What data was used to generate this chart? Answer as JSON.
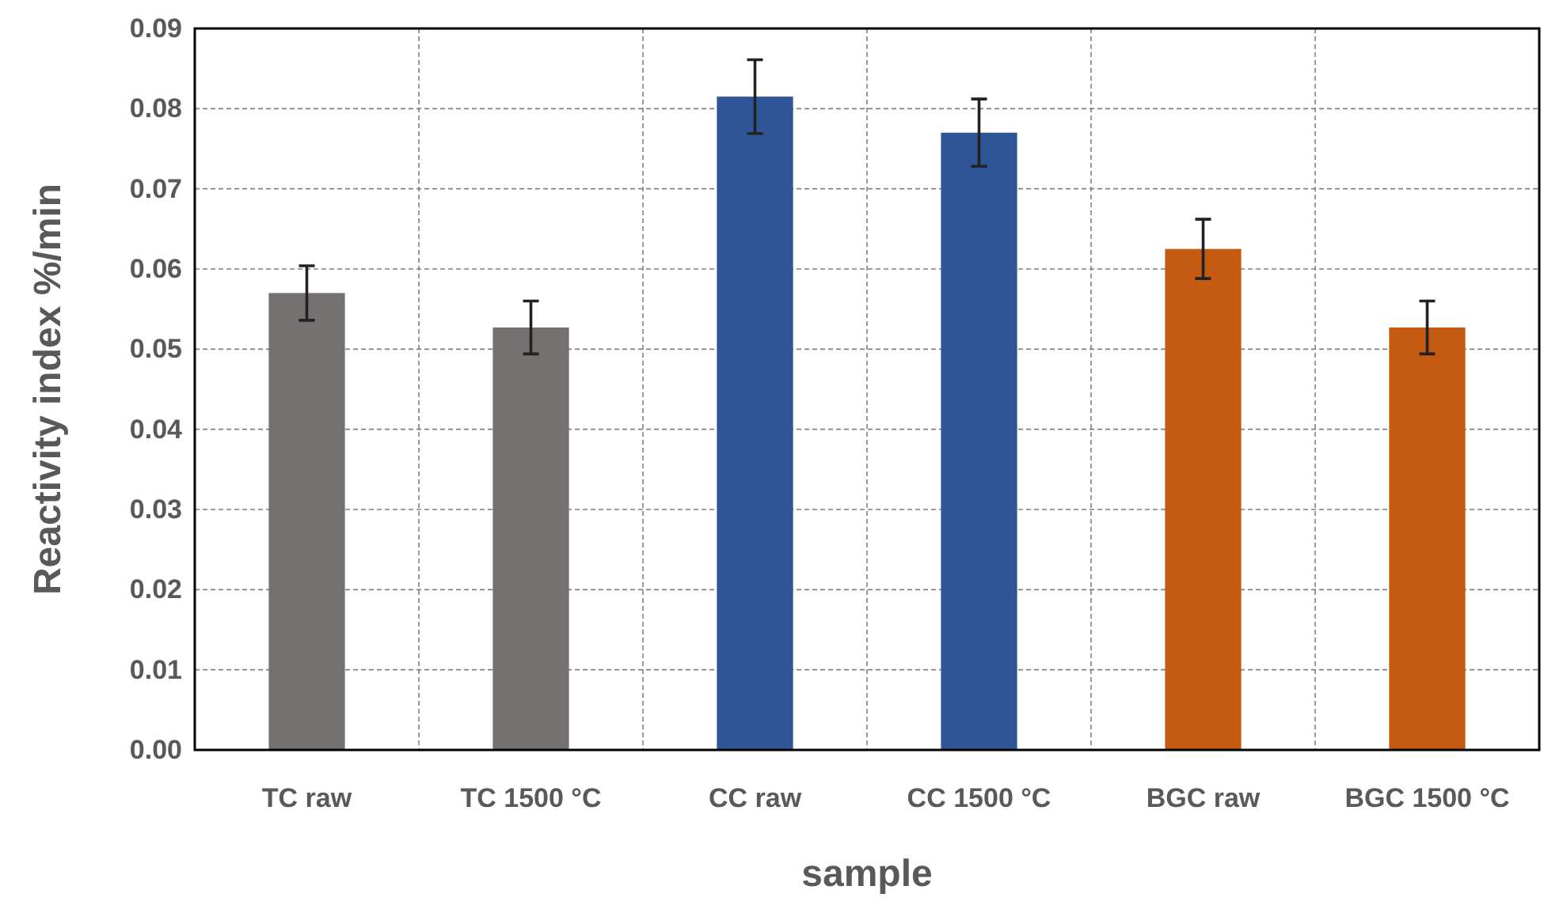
{
  "chart_data": {
    "type": "bar",
    "xlabel": "sample",
    "ylabel": "Reactivity index %/min",
    "categories": [
      "TC raw",
      "TC 1500 °C",
      "CC raw",
      "CC 1500 °C",
      "BGC raw",
      "BGC 1500 °C"
    ],
    "values": [
      0.057,
      0.0527,
      0.0815,
      0.077,
      0.0625,
      0.0527
    ],
    "colors": [
      "#767171",
      "#767171",
      "#2f5597",
      "#2f5597",
      "#c55a11",
      "#c55a11"
    ],
    "errors": [
      0.0034,
      0.0033,
      0.0046,
      0.0042,
      0.0037,
      0.0033
    ],
    "ylim": [
      0,
      0.09
    ],
    "yticks": [
      {
        "value": 0,
        "label": "0.00"
      },
      {
        "value": 0.01,
        "label": "0.01"
      },
      {
        "value": 0.02,
        "label": "0.02"
      },
      {
        "value": 0.03,
        "label": "0.03"
      },
      {
        "value": 0.04,
        "label": "0.04"
      },
      {
        "value": 0.05,
        "label": "0.05"
      },
      {
        "value": 0.06,
        "label": "0.06"
      },
      {
        "value": 0.07,
        "label": "0.07"
      },
      {
        "value": 0.08,
        "label": "0.08"
      },
      {
        "value": 0.09,
        "label": "0.09"
      }
    ],
    "grid": true
  }
}
